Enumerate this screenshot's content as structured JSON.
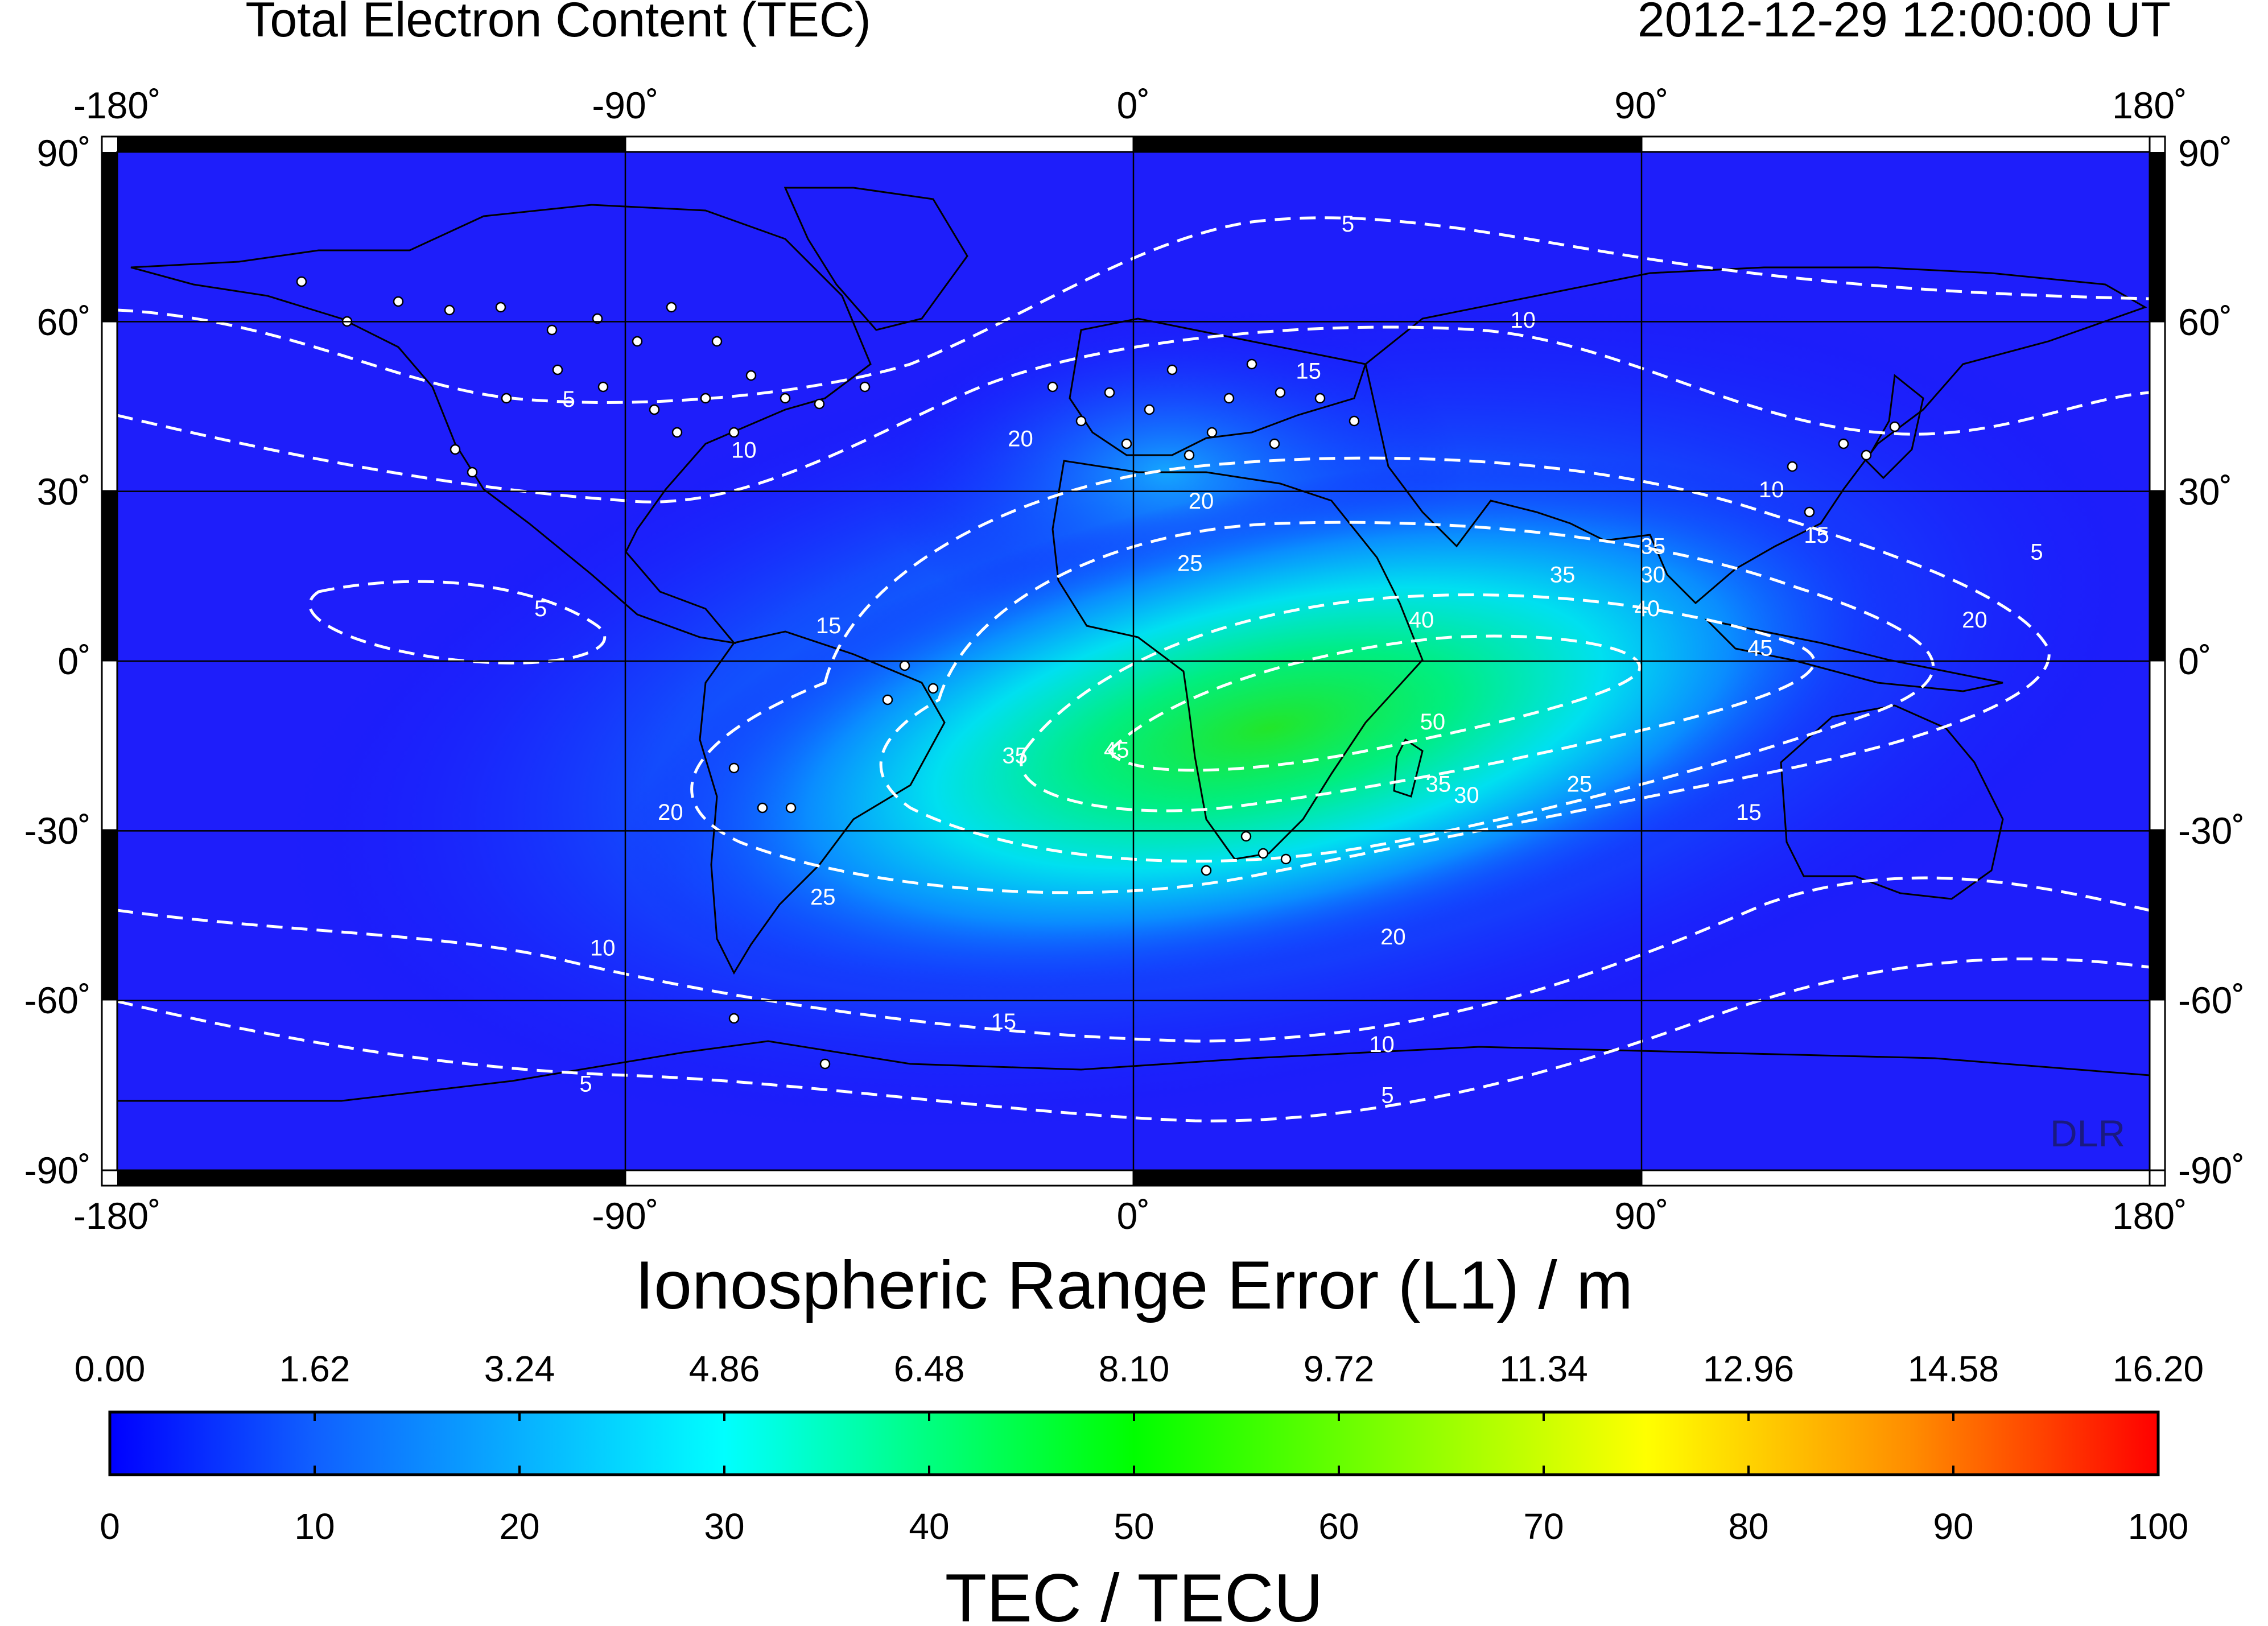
{
  "header": {
    "title": "Total Electron Content (TEC)",
    "timestamp": "2012-12-29  12:00:00 UT"
  },
  "map": {
    "lon_ticks": [
      "-180˚",
      "-90˚",
      "0˚",
      "90˚",
      "180˚"
    ],
    "lat_ticks": [
      "90˚",
      "60˚",
      "30˚",
      "0˚",
      "-30˚",
      "-60˚",
      "-90˚"
    ],
    "credit": "DLR",
    "contour_labels": [
      {
        "text": "5",
        "lon": 38,
        "lat": 77
      },
      {
        "text": "10",
        "lon": 69,
        "lat": 60
      },
      {
        "text": "5",
        "lon": -100,
        "lat": 46
      },
      {
        "text": "10",
        "lon": -69,
        "lat": 37
      },
      {
        "text": "5",
        "lon": -105,
        "lat": 9
      },
      {
        "text": "15",
        "lon": 31,
        "lat": 51
      },
      {
        "text": "20",
        "lon": -20,
        "lat": 39
      },
      {
        "text": "20",
        "lon": 12,
        "lat": 28
      },
      {
        "text": "25",
        "lon": 10,
        "lat": 17
      },
      {
        "text": "15",
        "lon": -54,
        "lat": 6
      },
      {
        "text": "10",
        "lon": 113,
        "lat": 30
      },
      {
        "text": "15",
        "lon": 121,
        "lat": 22
      },
      {
        "text": "5",
        "lon": 160,
        "lat": 19
      },
      {
        "text": "35",
        "lon": 92,
        "lat": 20
      },
      {
        "text": "30",
        "lon": 92,
        "lat": 15
      },
      {
        "text": "35",
        "lon": 76,
        "lat": 15
      },
      {
        "text": "40",
        "lon": 91,
        "lat": 9
      },
      {
        "text": "40",
        "lon": 51,
        "lat": 7
      },
      {
        "text": "45",
        "lon": 111,
        "lat": 2
      },
      {
        "text": "20",
        "lon": 149,
        "lat": 7
      },
      {
        "text": "35",
        "lon": -21,
        "lat": -17
      },
      {
        "text": "45",
        "lon": -3,
        "lat": -16
      },
      {
        "text": "50",
        "lon": 53,
        "lat": -11
      },
      {
        "text": "35",
        "lon": 54,
        "lat": -22
      },
      {
        "text": "30",
        "lon": 59,
        "lat": -24
      },
      {
        "text": "25",
        "lon": 79,
        "lat": -22
      },
      {
        "text": "15",
        "lon": 109,
        "lat": -27
      },
      {
        "text": "20",
        "lon": -82,
        "lat": -27
      },
      {
        "text": "25",
        "lon": -55,
        "lat": -42
      },
      {
        "text": "20",
        "lon": 46,
        "lat": -49
      },
      {
        "text": "10",
        "lon": -94,
        "lat": -51
      },
      {
        "text": "15",
        "lon": -23,
        "lat": -64
      },
      {
        "text": "10",
        "lon": 44,
        "lat": -68
      },
      {
        "text": "5",
        "lon": -97,
        "lat": -75
      },
      {
        "text": "5",
        "lon": 45,
        "lat": -77
      }
    ]
  },
  "colorbar": {
    "top_title": "Ionospheric Range Error (L1) / m",
    "top_ticks": [
      "0.00",
      "1.62",
      "3.24",
      "4.86",
      "6.48",
      "8.10",
      "9.72",
      "11.34",
      "12.96",
      "14.58",
      "16.20"
    ],
    "bottom_ticks": [
      "0",
      "10",
      "20",
      "30",
      "40",
      "50",
      "60",
      "70",
      "80",
      "90",
      "100"
    ],
    "bottom_title": "TEC / TECU",
    "colors": {
      "0": "#0000ff",
      "30": "#00ffff",
      "50": "#00ff00",
      "75": "#ffff00",
      "100": "#ff0000"
    }
  }
}
